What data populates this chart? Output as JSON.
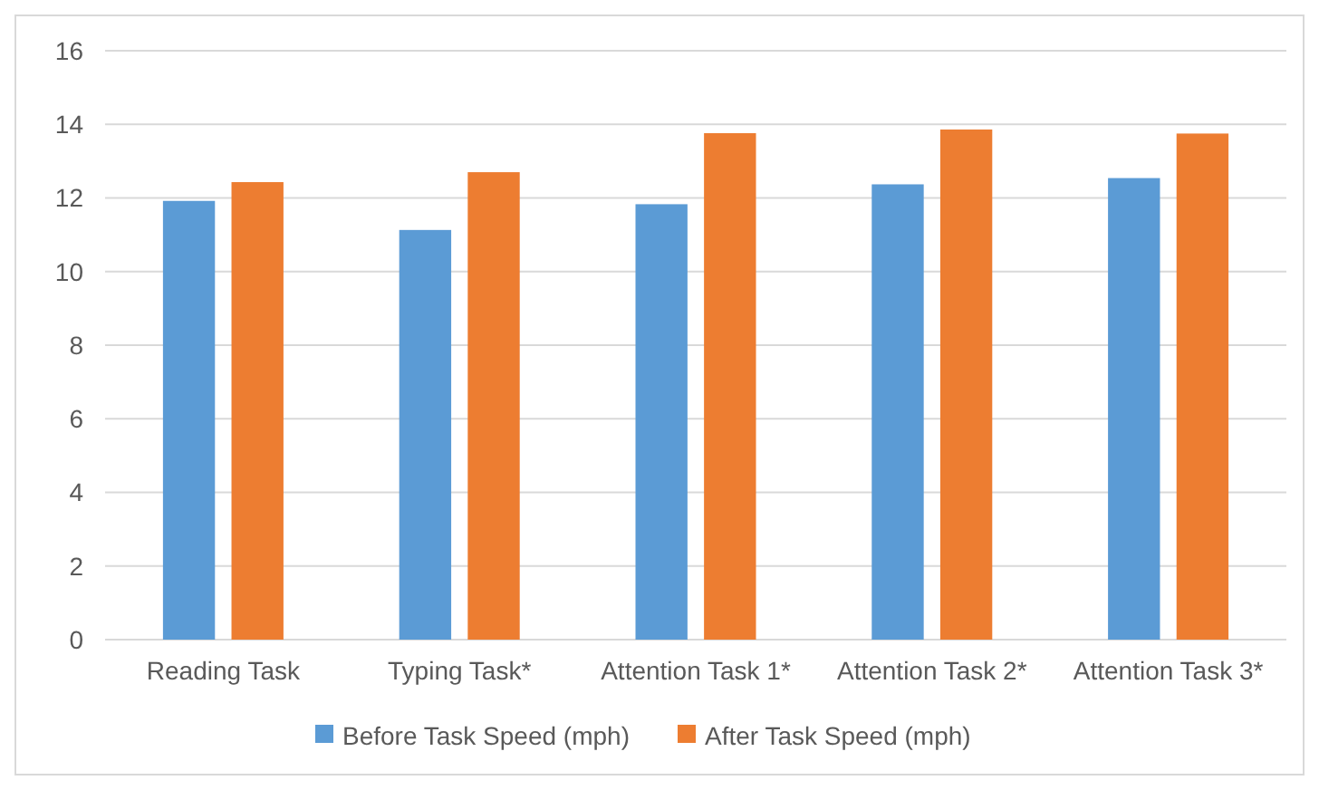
{
  "chart_data": {
    "type": "bar",
    "categories": [
      "Reading Task",
      "Typing Task*",
      "Attention Task 1*",
      "Attention Task 2*",
      "Attention Task 3*"
    ],
    "series": [
      {
        "name": "Before Task Speed (mph)",
        "color": "#5b9bd5",
        "values": [
          11.92,
          11.13,
          11.83,
          12.37,
          12.54
        ]
      },
      {
        "name": "After Task Speed (mph)",
        "color": "#ed7d31",
        "values": [
          12.43,
          12.7,
          13.76,
          13.86,
          13.75
        ]
      }
    ],
    "ylim": [
      0,
      16
    ],
    "yticks": [
      0,
      2,
      4,
      6,
      8,
      10,
      12,
      14,
      16
    ],
    "grid": "y",
    "legend": "bottom"
  }
}
